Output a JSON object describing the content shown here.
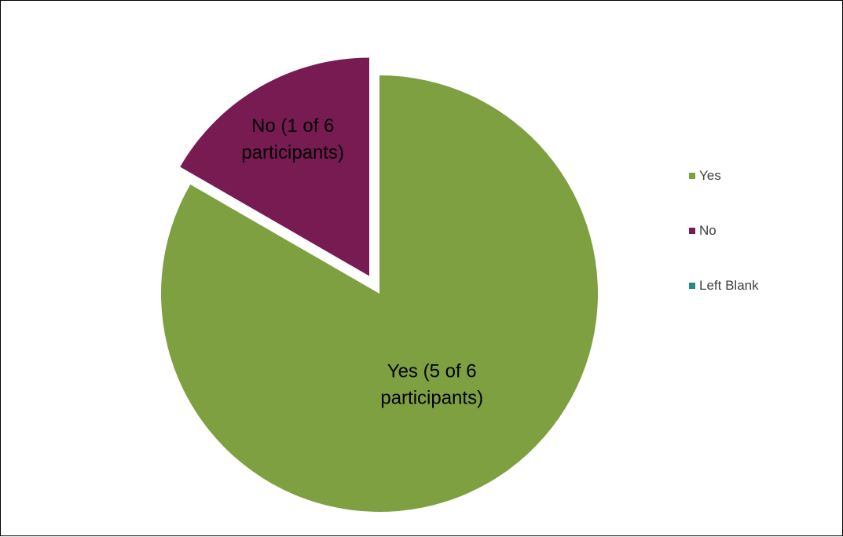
{
  "chart_data": {
    "type": "pie",
    "title": "",
    "categories": [
      "Yes",
      "No",
      "Left Blank"
    ],
    "values": [
      5,
      1,
      0
    ],
    "colors": [
      "#7FA040",
      "#771B52",
      "#1F8C8C"
    ],
    "exploded": [
      false,
      true,
      false
    ],
    "data_labels": [
      [
        "Yes (5 of 6",
        "participants)"
      ],
      [
        "No (1 of 6",
        "participants)"
      ],
      []
    ],
    "legend": {
      "placement": "right",
      "entries": [
        "Yes",
        "No",
        "Left Blank"
      ]
    }
  }
}
